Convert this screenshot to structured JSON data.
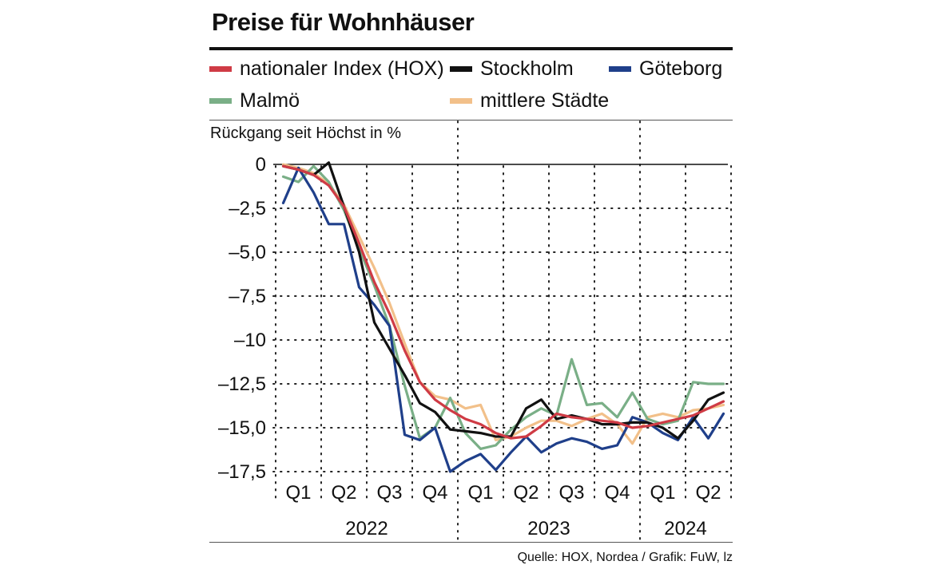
{
  "chart_data": {
    "type": "line",
    "title": "Preise für Wohnhäuser",
    "ylabel": "Rückgang seit Höchst in %",
    "source": "Quelle: HOX, Nordea / Grafik: FuW, lz",
    "ylim": [
      -17.5,
      0
    ],
    "yticks": [
      0,
      -2.5,
      -5.0,
      -7.5,
      -10,
      -12.5,
      -15.0,
      -17.5
    ],
    "ytick_labels": [
      "0",
      "–2,5",
      "–5,0",
      "–7,5",
      "–10",
      "–12,5",
      "–15,0",
      "–17,5"
    ],
    "x_period_count": 30,
    "quarters": [
      "Q1",
      "Q2",
      "Q3",
      "Q4",
      "Q1",
      "Q2",
      "Q3",
      "Q4",
      "Q1",
      "Q2"
    ],
    "years": [
      "2022",
      "2023",
      "2024"
    ],
    "x": [
      0,
      1,
      2,
      3,
      4,
      5,
      6,
      7,
      8,
      9,
      10,
      11,
      12,
      13,
      14,
      15,
      16,
      17,
      18,
      19,
      20,
      21,
      22,
      23,
      24,
      25,
      26,
      27,
      28,
      29
    ],
    "series": [
      {
        "name": "nationaler Index (HOX)",
        "color": "#cf3b45",
        "values": [
          -0.1,
          -0.3,
          -0.6,
          -1.2,
          -2.4,
          -4.5,
          -6.7,
          -8.5,
          -10.6,
          -12.4,
          -13.4,
          -14.0,
          -14.5,
          -14.8,
          -15.3,
          -15.6,
          -15.5,
          -14.9,
          -14.2,
          -14.4,
          -14.5,
          -14.6,
          -14.7,
          -15.0,
          -14.9,
          -14.7,
          -14.5,
          -14.3,
          -13.9,
          -13.5
        ]
      },
      {
        "name": "Stockholm",
        "color": "#111111",
        "values": [
          -0.1,
          -0.3,
          -0.6,
          0.1,
          -2.4,
          -5.0,
          -9.0,
          -10.5,
          -12.0,
          -13.6,
          -14.1,
          -15.1,
          -15.2,
          -15.3,
          -15.5,
          -15.5,
          -13.9,
          -13.4,
          -14.5,
          -14.3,
          -14.5,
          -14.8,
          -14.8,
          -14.7,
          -14.7,
          -15.0,
          -15.6,
          -14.6,
          -13.4,
          -13.0
        ]
      },
      {
        "name": "Göteborg",
        "color": "#1f3f8a",
        "values": [
          -2.2,
          -0.2,
          -1.6,
          -3.4,
          -3.4,
          -7.0,
          -8.0,
          -9.2,
          -15.4,
          -15.7,
          -15.0,
          -17.5,
          -16.9,
          -16.5,
          -17.4,
          -16.4,
          -15.5,
          -16.4,
          -15.9,
          -15.6,
          -15.8,
          -16.2,
          -16.0,
          -14.4,
          -14.7,
          -15.3,
          -15.7,
          -14.4,
          -15.6,
          -14.2
        ]
      },
      {
        "name": "Malmö",
        "color": "#7aaf87",
        "values": [
          -0.7,
          -1.0,
          -0.1,
          -1.0,
          -2.6,
          -4.8,
          -6.9,
          -9.2,
          -12.6,
          -15.6,
          -15.0,
          -13.3,
          -15.3,
          -16.2,
          -16.0,
          -15.1,
          -14.4,
          -13.9,
          -14.3,
          -11.1,
          -13.7,
          -13.6,
          -14.4,
          -13.0,
          -14.5,
          -14.8,
          -14.6,
          -12.4,
          -12.5,
          -12.5
        ]
      },
      {
        "name": "mittlere Städte",
        "color": "#f2c08a",
        "values": [
          0.0,
          -0.2,
          -0.5,
          -1.1,
          -2.3,
          -4.1,
          -5.9,
          -7.9,
          -10.2,
          -12.4,
          -13.2,
          -13.4,
          -13.9,
          -13.7,
          -15.7,
          -15.5,
          -15.0,
          -14.6,
          -14.6,
          -14.9,
          -14.5,
          -14.2,
          -14.8,
          -15.9,
          -14.4,
          -14.2,
          -14.4,
          -14.0,
          -13.9,
          -13.7
        ]
      }
    ]
  }
}
